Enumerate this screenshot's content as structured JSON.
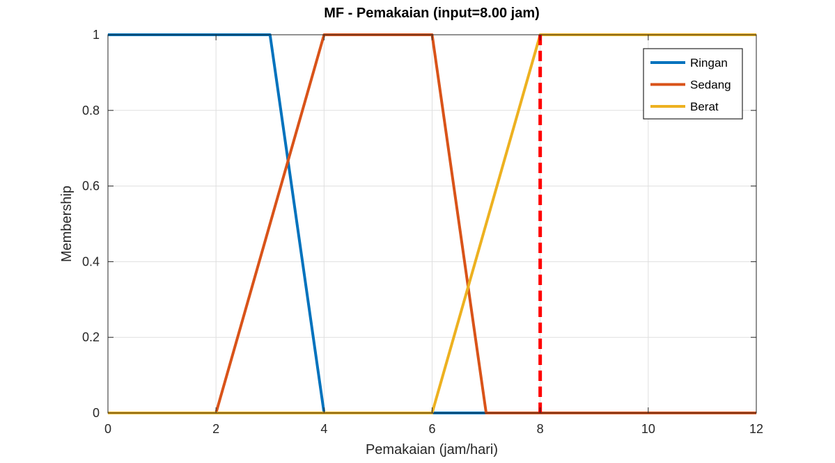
{
  "chart_data": {
    "type": "line",
    "title": "MF - Pemakaian (input=8.00 jam)",
    "xlabel": "Pemakaian (jam/hari)",
    "ylabel": "Membership",
    "xlim": [
      0,
      12
    ],
    "ylim": [
      0,
      1
    ],
    "xticks": [
      0,
      2,
      4,
      6,
      8,
      10,
      12
    ],
    "xtick_labels": [
      "0",
      "2",
      "4",
      "6",
      "8",
      "10",
      "12"
    ],
    "yticks": [
      0,
      0.2,
      0.4,
      0.6,
      0.8,
      1
    ],
    "ytick_labels": [
      "0",
      "0.2",
      "0.4",
      "0.6",
      "0.8",
      "1"
    ],
    "grid": true,
    "legend_position": "top-right",
    "series": [
      {
        "name": "Ringan",
        "color": "#0072BD",
        "x": [
          0,
          3,
          4,
          12
        ],
        "y": [
          1,
          1,
          0,
          0
        ]
      },
      {
        "name": "Sedang",
        "color": "#D95319",
        "x": [
          0,
          2,
          4,
          6,
          7,
          12
        ],
        "y": [
          0,
          0,
          1,
          1,
          0,
          0
        ]
      },
      {
        "name": "Berat",
        "color": "#EDB120",
        "x": [
          0,
          6,
          8,
          12
        ],
        "y": [
          0,
          0,
          1,
          1
        ]
      }
    ],
    "annotations": [
      {
        "type": "vertical-line",
        "style": "dashed",
        "color": "#FF0000",
        "x": 8,
        "y_range": [
          0,
          1
        ]
      }
    ]
  }
}
